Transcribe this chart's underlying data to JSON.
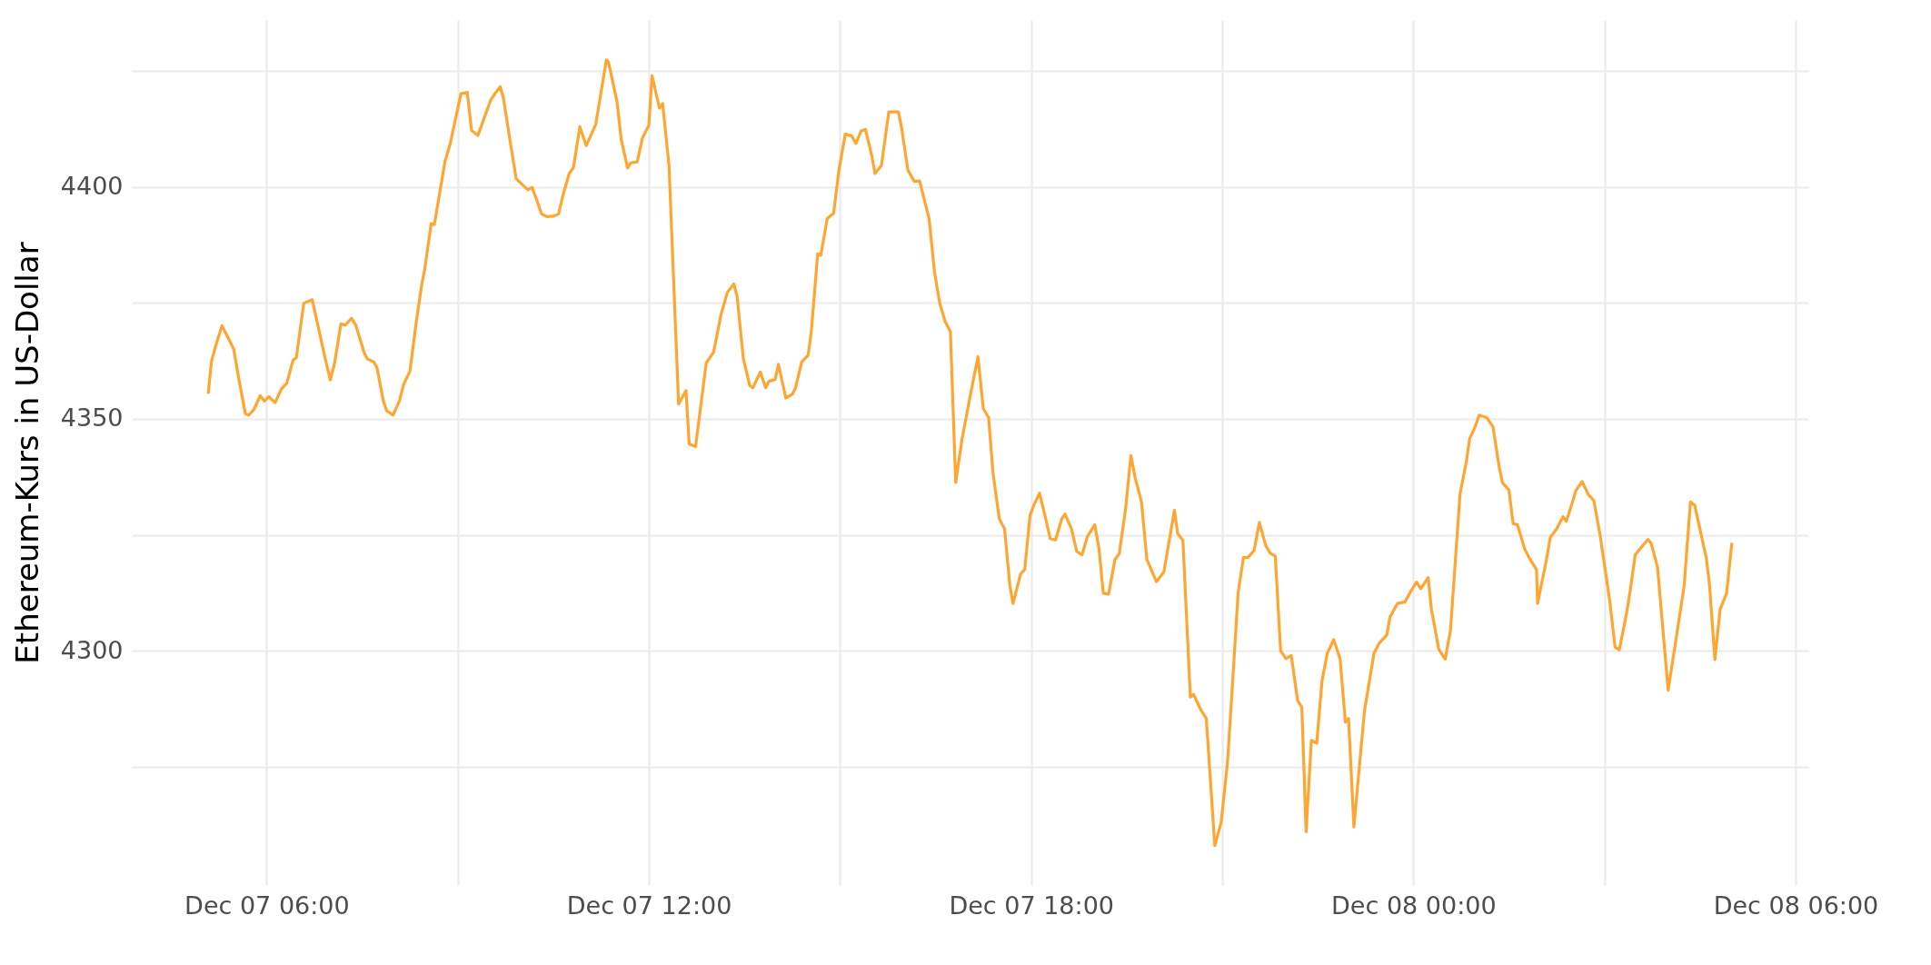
{
  "chart_data": {
    "type": "line",
    "ylabel": "Ethereum-Kurs in US-Dollar",
    "color": "#ffa531",
    "grid": true,
    "xlim": [
      "--12-07T03:53",
      "--12-08T06:12"
    ],
    "xticks": [
      {
        "value": "--12-07T06:00",
        "label": "Dec 07 06:00"
      },
      {
        "value": "--12-07T09:00",
        "label": null
      },
      {
        "value": "--12-07T12:00",
        "label": "Dec 07 12:00"
      },
      {
        "value": "--12-07T15:00",
        "label": null
      },
      {
        "value": "--12-07T18:00",
        "label": "Dec 07 18:00"
      },
      {
        "value": "--12-07T21:00",
        "label": null
      },
      {
        "value": "--12-08T00:00",
        "label": "Dec 08 00:00"
      },
      {
        "value": "--12-08T03:00",
        "label": null
      },
      {
        "value": "--12-08T06:00",
        "label": "Dec 08 06:00"
      }
    ],
    "ylim": [
      4249.5,
      4436
    ],
    "yticks": [
      {
        "value": 4275,
        "label": null
      },
      4300,
      {
        "value": 4325,
        "label": null
      },
      4350,
      {
        "value": 4375,
        "label": null
      },
      4400,
      {
        "value": 4425,
        "label": null
      }
    ],
    "x": [
      "--12-07T05:05",
      "--12-07T05:08",
      "--12-07T05:12",
      "--12-07T05:18",
      "--12-07T05:29",
      "--12-07T05:34",
      "--12-07T05:40",
      "--12-07T05:43",
      "--12-07T05:48",
      "--12-07T05:54",
      "--12-07T05:58",
      "--12-07T06:02",
      "--12-07T06:08",
      "--12-07T06:14",
      "--12-07T06:19",
      "--12-07T06:25",
      "--12-07T06:28",
      "--12-07T06:35",
      "--12-07T06:43",
      "--12-07T06:55",
      "--12-07T07:00",
      "--12-07T07:04",
      "--12-07T07:10",
      "--12-07T07:14",
      "--12-07T07:20",
      "--12-07T07:24",
      "--12-07T07:32",
      "--12-07T07:35",
      "--12-07T07:41",
      "--12-07T07:44",
      "--12-07T07:50",
      "--12-07T07:53",
      "--12-07T07:59",
      "--12-07T08:05",
      "--12-07T08:09",
      "--12-07T08:15",
      "--12-07T08:21",
      "--12-07T08:26",
      "--12-07T08:29",
      "--12-07T08:35",
      "--12-07T08:38",
      "--12-07T08:48",
      "--12-07T08:53",
      "--12-07T09:03",
      "--12-07T09:09",
      "--12-07T09:13",
      "--12-07T09:19",
      "--12-07T09:31",
      "--12-07T09:35",
      "--12-07T09:40",
      "--12-07T09:43",
      "--12-07T09:49",
      "--12-07T09:55",
      "--12-07T10:06",
      "--12-07T10:10",
      "--12-07T10:15",
      "--12-07T10:19",
      "--12-07T10:24",
      "--12-07T10:30",
      "--12-07T10:35",
      "--12-07T10:39",
      "--12-07T10:45",
      "--12-07T10:49",
      "--12-07T10:55",
      "--12-07T11:01",
      "--12-07T11:10",
      "--12-07T11:20",
      "--12-07T11:22",
      "--12-07T11:30",
      "--12-07T11:34",
      "--12-07T11:40",
      "--12-07T11:43",
      "--12-07T11:49",
      "--12-07T11:54",
      "--12-07T12:00",
      "--12-07T12:03",
      "--12-07T12:10",
      "--12-07T12:13",
      "--12-07T12:19",
      "--12-07T12:28",
      "--12-07T12:35",
      "--12-07T12:38",
      "--12-07T12:44",
      "--12-07T12:49",
      "--12-07T12:54",
      "--12-07T13:01",
      "--12-07T13:08",
      "--12-07T13:14",
      "--12-07T13:20",
      "--12-07T13:23",
      "--12-07T13:29",
      "--12-07T13:35",
      "--12-07T13:38",
      "--12-07T13:45",
      "--12-07T13:50",
      "--12-07T13:53",
      "--12-07T13:59",
      "--12-07T14:02",
      "--12-07T14:09",
      "--12-07T14:15",
      "--12-07T14:18",
      "--12-07T14:24",
      "--12-07T14:30",
      "--12-07T14:33",
      "--12-07T14:39",
      "--12-07T14:42",
      "--12-07T14:48",
      "--12-07T14:54",
      "--12-07T14:59",
      "--12-07T15:05",
      "--12-07T15:11",
      "--12-07T15:15",
      "--12-07T15:20",
      "--12-07T15:24",
      "--12-07T15:30",
      "--12-07T15:33",
      "--12-07T15:39",
      "--12-07T15:46",
      "--12-07T15:55",
      "--12-07T15:58",
      "--12-07T16:04",
      "--12-07T16:10",
      "--12-07T16:15",
      "--12-07T16:24",
      "--12-07T16:29",
      "--12-07T16:34",
      "--12-07T16:39",
      "--12-07T16:44",
      "--12-07T16:49",
      "--12-07T16:55",
      "--12-07T17:03",
      "--12-07T17:10",
      "--12-07T17:15",
      "--12-07T17:20",
      "--12-07T17:24",
      "--12-07T17:30",
      "--12-07T17:35",
      "--12-07T17:40",
      "--12-07T17:43",
      "--12-07T17:50",
      "--12-07T17:54",
      "--12-07T17:59",
      "--12-07T18:03",
      "--12-07T18:08",
      "--12-07T18:13",
      "--12-07T18:18",
      "--12-07T18:23",
      "--12-07T18:29",
      "--12-07T18:32",
      "--12-07T18:38",
      "--12-07T18:43",
      "--12-07T18:48",
      "--12-07T18:53",
      "--12-07T19:00",
      "--12-07T19:04",
      "--12-07T19:08",
      "--12-07T19:13",
      "--12-07T19:19",
      "--12-07T19:23",
      "--12-07T19:29",
      "--12-07T19:34",
      "--12-07T19:38",
      "--12-07T19:44",
      "--12-07T19:49",
      "--12-07T19:58",
      "--12-07T20:05",
      "--12-07T20:15",
      "--12-07T20:18",
      "--12-07T20:23",
      "--12-07T20:30",
      "--12-07T20:33",
      "--12-07T20:40",
      "--12-07T20:45",
      "--12-07T20:53",
      "--12-07T20:59",
      "--12-07T21:05",
      "--12-07T21:10",
      "--12-07T21:15",
      "--12-07T21:20",
      "--12-07T21:24",
      "--12-07T21:30",
      "--12-07T21:35",
      "--12-07T21:41",
      "--12-07T21:45",
      "--12-07T21:50",
      "--12-07T21:55",
      "--12-07T22:00",
      "--12-07T22:05",
      "--12-07T22:11",
      "--12-07T22:15",
      "--12-07T22:19",
      "--12-07T22:24",
      "--12-07T22:29",
      "--12-07T22:34",
      "--12-07T22:39",
      "--12-07T22:45",
      "--12-07T22:51",
      "--12-07T22:56",
      "--12-07T22:59",
      "--12-07T23:04",
      "--12-07T23:14",
      "--12-07T23:23",
      "--12-07T23:28",
      "--12-07T23:35",
      "--12-07T23:38",
      "--12-07T23:45",
      "--12-07T23:52",
      "--12-07T23:57",
      "--12-08T00:03",
      "--12-08T00:07",
      "--12-08T00:14",
      "--12-08T00:17",
      "--12-08T00:24",
      "--12-08T00:30",
      "--12-08T00:35",
      "--12-08T00:40",
      "--12-08T00:44",
      "--12-08T00:50",
      "--12-08T00:53",
      "--12-08T00:58",
      "--12-08T01:02",
      "--12-08T01:09",
      "--12-08T01:15",
      "--12-08T01:21",
      "--12-08T01:24",
      "--12-08T01:30",
      "--12-08T01:34",
      "--12-08T01:38",
      "--12-08T01:45",
      "--12-08T01:49",
      "--12-08T01:56",
      "--12-08T01:57",
      "--12-08T02:05",
      "--12-08T02:09",
      "--12-08T02:15",
      "--12-08T02:21",
      "--12-08T02:24",
      "--12-08T02:30",
      "--12-08T02:33",
      "--12-08T02:39",
      "--12-08T02:45",
      "--12-08T02:50",
      "--12-08T02:56",
      "--12-08T03:05",
      "--12-08T03:10",
      "--12-08T03:14",
      "--12-08T03:21",
      "--12-08T03:24",
      "--12-08T03:29",
      "--12-08T03:35",
      "--12-08T03:41",
      "--12-08T03:44",
      "--12-08T03:50",
      "--12-08T04:00",
      "--12-08T04:09",
      "--12-08T04:15",
      "--12-08T04:21",
      "--12-08T04:25",
      "--12-08T04:36",
      "--12-08T04:39",
      "--12-08T04:44",
      "--12-08T04:49",
      "--12-08T04:55",
      "--12-08T05:00"
    ],
    "values": [
      4355.4,
      4362.3,
      4365.7,
      4370.1,
      4365.1,
      4358.4,
      4351.1,
      4350.8,
      4352.0,
      4355.0,
      4353.8,
      4354.8,
      4353.5,
      4356.5,
      4357.7,
      4362.7,
      4363.2,
      4374.9,
      4375.7,
      4363.2,
      4358.4,
      4362.0,
      4370.5,
      4370.2,
      4371.7,
      4370.2,
      4364.2,
      4362.9,
      4362.3,
      4361.0,
      4353.8,
      4351.8,
      4350.8,
      4353.8,
      4357.4,
      4360.3,
      4371.0,
      4378.8,
      4382.4,
      4392.1,
      4391.9,
      4405.5,
      4409.4,
      4420.1,
      4420.4,
      4412.2,
      4411.1,
      4418.7,
      4420.1,
      4421.6,
      4419.2,
      4410.4,
      4401.8,
      4399.4,
      4399.9,
      4396.8,
      4394.2,
      4393.6,
      4393.7,
      4394.2,
      4398.1,
      4402.9,
      4404.2,
      4413.0,
      4408.9,
      4413.5,
      4427.4,
      4426.9,
      4418.4,
      4410.2,
      4404.1,
      4405.2,
      4405.4,
      4410.6,
      4413.3,
      4424.0,
      4417.0,
      4418.0,
      4404.6,
      4353.2,
      4356.1,
      4344.6,
      4344.0,
      4353.0,
      4362.0,
      4364.4,
      4372.5,
      4377.3,
      4379.1,
      4376.6,
      4363.0,
      4357.2,
      4356.7,
      4360.1,
      4356.7,
      4358.1,
      4358.5,
      4361.8,
      4354.5,
      4355.3,
      4356.6,
      4362.3,
      4363.7,
      4368.8,
      4385.6,
      4385.3,
      4393.2,
      4394.3,
      4403.6,
      4411.4,
      4411.0,
      4409.4,
      4412.1,
      4412.4,
      4406.7,
      4402.9,
      4404.6,
      4416.2,
      4416.2,
      4412.8,
      4403.6,
      4401.2,
      4401.3,
      4393.1,
      4381.7,
      4374.9,
      4371.0,
      4368.8,
      4336.3,
      4345.7,
      4355.4,
      4363.4,
      4352.2,
      4350.3,
      4338.6,
      4328.5,
      4326.3,
      4314.1,
      4310.2,
      4316.5,
      4317.5,
      4329.2,
      4331.6,
      4334.0,
      4329.2,
      4324.2,
      4323.9,
      4328.5,
      4329.5,
      4326.3,
      4321.4,
      4320.7,
      4324.6,
      4327.2,
      4321.9,
      4312.4,
      4312.2,
      4319.7,
      4320.9,
      4330.6,
      4342.1,
      4337.3,
      4332.1,
      4319.7,
      4314.9,
      4317.0,
      4330.3,
      4325.3,
      4323.8,
      4290.0,
      4290.6,
      4287.2,
      4285.4,
      4258,
      4263,
      4276,
      4294,
      4312.6,
      4320.1,
      4320.1,
      4321.6,
      4327.7,
      4322.7,
      4321.1,
      4320.4,
      4300.0,
      4298.3,
      4299.0,
      4289.3,
      4287.8,
      4261,
      4280.7,
      4280.1,
      4293.5,
      4299.5,
      4302.4,
      4298.3,
      4284.6,
      4285.4,
      4262,
      4287.1,
      4299.5,
      4301.7,
      4303.4,
      4307.3,
      4310.2,
      4310.5,
      4312.6,
      4314.8,
      4313.4,
      4315.8,
      4309.0,
      4300.3,
      4298.2,
      4304.4,
      4320.9,
      4333.8,
      4340.9,
      4345.7,
      4348.2,
      4350.8,
      4350.3,
      4348.3,
      4339.4,
      4336.2,
      4334.7,
      4327.4,
      4327.2,
      4321.9,
      4320.1,
      4317.5,
      4310.2,
      4319.2,
      4324.5,
      4326.3,
      4328.9,
      4327.9,
      4332.1,
      4334.5,
      4336.5,
      4333.6,
      4332.4,
      4324.8,
      4310.7,
      4300.8,
      4300.2,
      4308.3,
      4312.6,
      4320.7,
      4322.4,
      4324.0,
      4323.2,
      4318.0,
      4291.5,
      4304.9,
      4313.9,
      4332.1,
      4331.4,
      4319.9,
      4314.1,
      4298.1,
      4309.0,
      4312.4,
      4323.3
    ]
  }
}
